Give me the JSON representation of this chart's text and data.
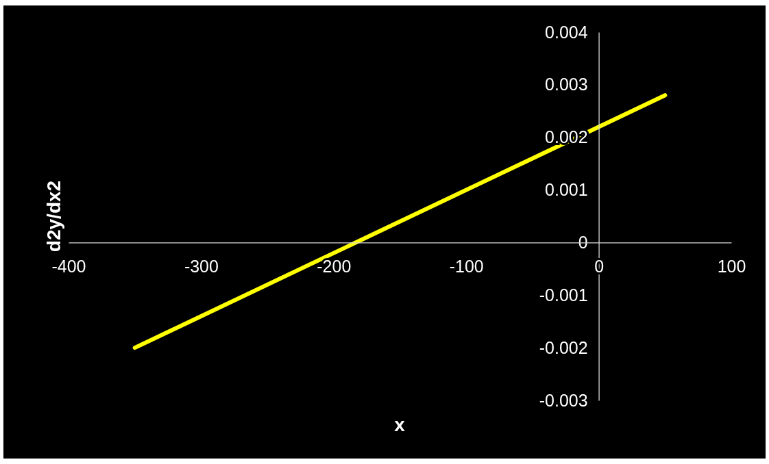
{
  "chart_data": {
    "type": "line",
    "xlabel": "x",
    "ylabel": "d2y/dx2",
    "x": [
      -350,
      50
    ],
    "series": [
      {
        "color": "#ffff00",
        "values": [
          -0.002,
          0.0028
        ]
      }
    ],
    "xlim": [
      -400,
      100
    ],
    "xticks": [
      -400,
      -300,
      -200,
      -100,
      0,
      100
    ],
    "ylim": [
      -0.003,
      0.004
    ],
    "yticks": [
      -0.003,
      -0.002,
      -0.001,
      0,
      0.001,
      0.002,
      0.003,
      0.004
    ],
    "grid": false
  }
}
